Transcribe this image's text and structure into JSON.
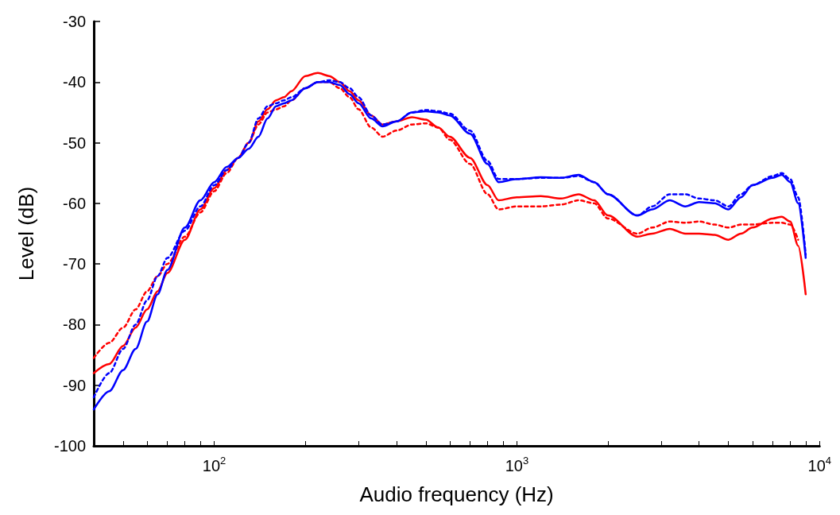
{
  "chart_data": {
    "type": "line",
    "xlabel": "Audio frequency (Hz)",
    "ylabel": "Level (dB)",
    "log": "x",
    "grid": false,
    "marker": "none",
    "xlim": [
      40,
      10000
    ],
    "xticks": [
      {
        "value": 50,
        "label": null
      },
      {
        "value": 60,
        "label": null
      },
      {
        "value": 70,
        "label": null
      },
      {
        "value": 80,
        "label": null
      },
      {
        "value": 90,
        "label": null
      },
      {
        "value": 100,
        "label": "10$^{2}$"
      },
      {
        "value": 200,
        "label": null
      },
      {
        "value": 300,
        "label": null
      },
      {
        "value": 400,
        "label": null
      },
      {
        "value": 500,
        "label": null
      },
      {
        "value": 600,
        "label": null
      },
      {
        "value": 700,
        "label": null
      },
      {
        "value": 800,
        "label": null
      },
      {
        "value": 900,
        "label": null
      },
      {
        "value": 1000,
        "label": "10$^{3}$"
      },
      {
        "value": 2000,
        "label": null
      },
      {
        "value": 3000,
        "label": null
      },
      {
        "value": 4000,
        "label": null
      },
      {
        "value": 5000,
        "label": null
      },
      {
        "value": 6000,
        "label": null
      },
      {
        "value": 7000,
        "label": null
      },
      {
        "value": 8000,
        "label": null
      },
      {
        "value": 9000,
        "label": null
      },
      {
        "value": 10000,
        "label": "10$^{4}$"
      }
    ],
    "ylim": [
      -100,
      -30
    ],
    "yticks": [
      -100,
      -90,
      -80,
      -70,
      -60,
      -50,
      -40,
      -30
    ],
    "x": [
      40,
      45,
      50,
      55,
      60,
      65,
      70,
      80,
      90,
      100,
      110,
      120,
      130,
      140,
      150,
      160,
      170,
      180,
      200,
      220,
      240,
      260,
      280,
      300,
      330,
      360,
      400,
      450,
      500,
      550,
      600,
      700,
      800,
      870,
      1000,
      1200,
      1400,
      1600,
      1800,
      2000,
      2500,
      2800,
      3200,
      3600,
      4000,
      4500,
      5000,
      5500,
      6000,
      7000,
      7500,
      8000,
      8500,
      9000
    ],
    "series": [
      {
        "color": "#ff0000",
        "line_style": "solid",
        "values": [
          -88,
          -86.5,
          -83.5,
          -80.5,
          -77.5,
          -74.5,
          -71.5,
          -66,
          -61,
          -57.5,
          -54.5,
          -52.5,
          -50,
          -46.5,
          -44.5,
          -43,
          -42.5,
          -41.5,
          -39,
          -38.5,
          -39,
          -40,
          -41.5,
          -43,
          -45.5,
          -47,
          -46.5,
          -45.8,
          -46.2,
          -47.5,
          -49,
          -52.5,
          -57,
          -59.5,
          -59,
          -58.8,
          -59.2,
          -58.5,
          -59.5,
          -62,
          -65.5,
          -65,
          -64.2,
          -65,
          -65,
          -65.2,
          -66,
          -65,
          -64,
          -62.5,
          -62.2,
          -63,
          -67,
          -75
        ]
      },
      {
        "color": "#ff0000",
        "line_style": "dotted",
        "values": [
          -85.5,
          -83,
          -80.5,
          -77.5,
          -74.5,
          -72,
          -70,
          -65.5,
          -61.5,
          -58,
          -55,
          -52.5,
          -50,
          -47,
          -45,
          -44.5,
          -44,
          -43,
          -41,
          -40,
          -40,
          -41,
          -42.5,
          -44.5,
          -47.5,
          -49,
          -48,
          -47,
          -46.8,
          -47.5,
          -49.5,
          -53.5,
          -58.5,
          -61,
          -60.5,
          -60.5,
          -60.2,
          -59.5,
          -60,
          -62.5,
          -65,
          -64,
          -63,
          -63.2,
          -63,
          -63.5,
          -64,
          -63.5,
          -63.5,
          -63.2,
          -63.2,
          -63.5,
          -66,
          null
        ]
      },
      {
        "color": "#0000ff",
        "line_style": "solid",
        "values": [
          -94,
          -91,
          -87.5,
          -84,
          -79.5,
          -75,
          -71,
          -64,
          -59.5,
          -56.5,
          -54,
          -52.5,
          -51,
          -49,
          -46,
          -44,
          -43.5,
          -43,
          -41,
          -40,
          -40,
          -40.5,
          -42,
          -43.5,
          -46,
          -47.3,
          -46.5,
          -45,
          -44.8,
          -45,
          -45.5,
          -48.5,
          -53.5,
          -56.5,
          -56,
          -55.7,
          -55.8,
          -55.3,
          -56.5,
          -58.5,
          -62,
          -61,
          -59.5,
          -60.5,
          -59.8,
          -60,
          -61,
          -59,
          -57,
          -55.8,
          -55.3,
          -56.5,
          -60,
          -69
        ]
      },
      {
        "color": "#0000ff",
        "line_style": "dotted",
        "values": [
          -92,
          -88,
          -84,
          -80,
          -76,
          -72,
          -69,
          -64.5,
          -60.5,
          -57,
          -54.5,
          -52.5,
          -50,
          -46,
          -44,
          -43.5,
          -43,
          -42.5,
          -41,
          -40,
          -39.7,
          -40,
          -41,
          -42.5,
          -45.5,
          -47,
          -46.5,
          -45,
          -44.6,
          -44.8,
          -45.2,
          -48,
          -53,
          -56,
          -56,
          -55.8,
          -55.8,
          -55.5,
          -56.5,
          -58.5,
          -62,
          -60.5,
          -58.5,
          -58.5,
          -59.2,
          -59.5,
          -60.5,
          -58.5,
          -57,
          -55.5,
          -55,
          -56,
          -59,
          -68.5
        ]
      }
    ]
  }
}
